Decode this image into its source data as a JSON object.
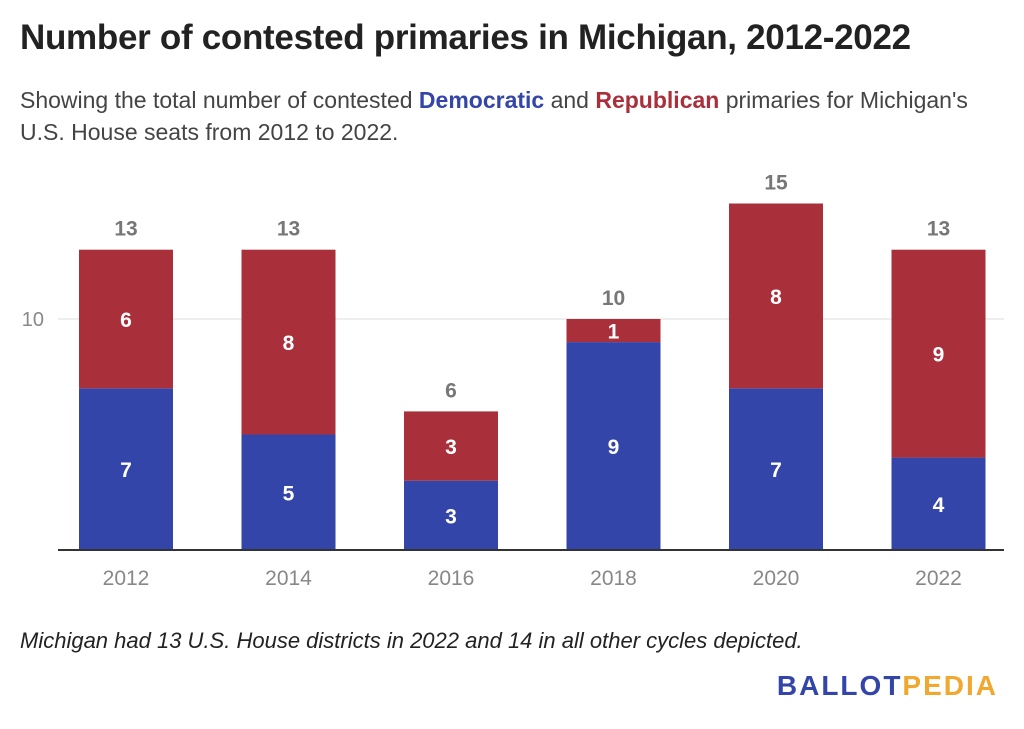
{
  "title": "Number of contested primaries in Michigan, 2012-2022",
  "subtitle": {
    "pre": "Showing the total number of contested ",
    "dem": "Democratic",
    "mid": " and ",
    "rep": "Republican",
    "post": " primaries for Michigan's U.S. House seats from 2012 to 2022."
  },
  "footnote": "Michigan had 13 U.S. House districts in 2022 and 14 in all other cycles depicted.",
  "logo": {
    "part1": "BALLOT",
    "part2": "PEDIA"
  },
  "colors": {
    "democratic": "#3345a8",
    "republican": "#a9303b",
    "axis": "#333333",
    "grid": "#dddddd",
    "tick_text": "#888888",
    "total_text": "#777777",
    "bar_label": "#ffffff"
  },
  "chart_data": {
    "type": "bar",
    "stacked": true,
    "categories": [
      "2012",
      "2014",
      "2016",
      "2018",
      "2020",
      "2022"
    ],
    "series": [
      {
        "name": "Democratic",
        "values": [
          7,
          5,
          3,
          9,
          7,
          4
        ]
      },
      {
        "name": "Republican",
        "values": [
          6,
          8,
          3,
          1,
          8,
          9
        ]
      }
    ],
    "totals": [
      13,
      13,
      6,
      10,
      15,
      13
    ],
    "ylim": [
      0,
      15
    ],
    "yticks": [
      10
    ],
    "grid": true,
    "legend": "none",
    "xlabel": "",
    "ylabel": ""
  }
}
